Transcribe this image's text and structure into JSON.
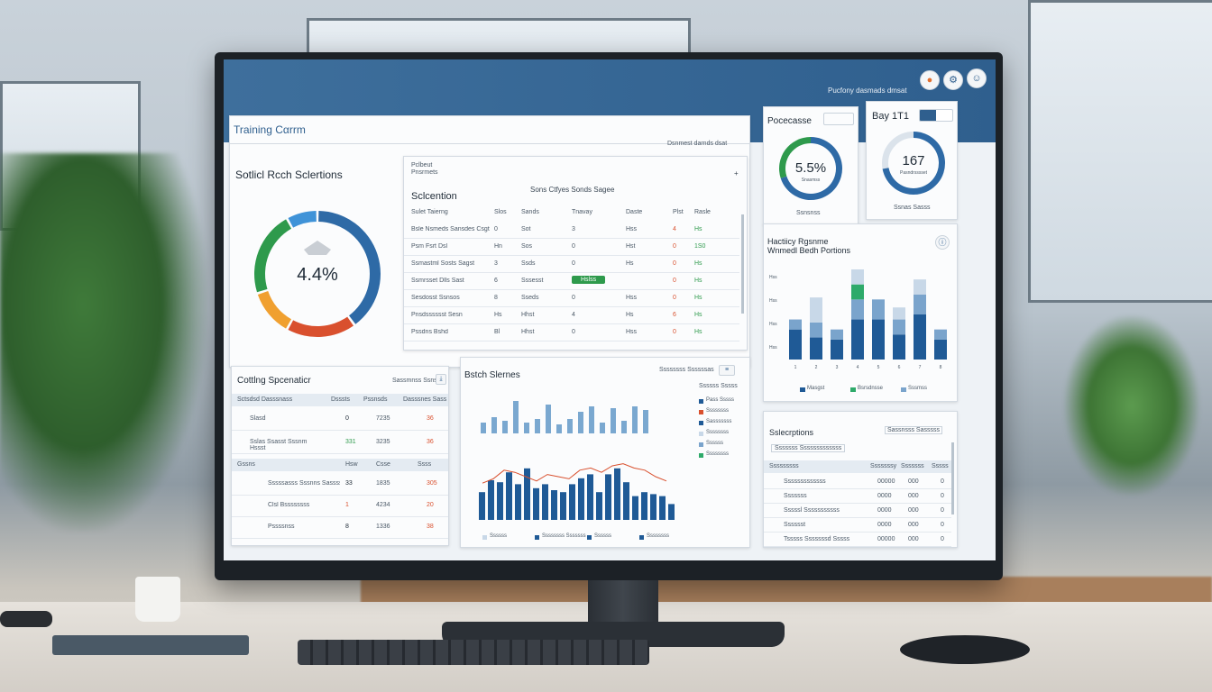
{
  "app": {
    "title": "Training Cαrrm",
    "header_right_text": "Pucfony dasmads dmsat"
  },
  "donut_main": {
    "title": "Sotlicl Rcch Sclertions",
    "value": "4.4%",
    "segments": [
      {
        "name": "blue",
        "value": 40,
        "color": "#2e6aa6"
      },
      {
        "name": "red",
        "value": 18,
        "color": "#d9502e"
      },
      {
        "name": "orange",
        "value": 12,
        "color": "#f0a030"
      },
      {
        "name": "green",
        "value": 22,
        "color": "#2e9a4c"
      },
      {
        "name": "lightblue",
        "value": 8,
        "color": "#3f93d8"
      }
    ]
  },
  "selection_table": {
    "title": "Sclcention",
    "search_label": "Sons Ctfyes Sonds Sagee",
    "top_left_labels": [
      "Pclbeut",
      "Pnsrmets"
    ],
    "top_right_label": "Dsnmest darnds dsat",
    "headers": [
      "Sulet Taierng",
      "Slos",
      "Sands",
      "Tnavay",
      "Daste",
      "Plst",
      "Rasle"
    ],
    "rows": [
      {
        "name": "Bsle Nsmeds Sansdes Csgt",
        "c1": "0",
        "c2": "Sot",
        "c3": "3",
        "c4": "Hss",
        "c5": "4",
        "c6": "Hs"
      },
      {
        "name": "Psm Fsrt Dsl",
        "c1": "Hn",
        "c2": "Sos",
        "c3": "0",
        "c4": "Hst",
        "c5": "0",
        "c6": "1S0"
      },
      {
        "name": "Ssmastml Sosts Sagst",
        "c1": "3",
        "c2": "Ssds",
        "c3": "0",
        "c4": "Hs",
        "c5": "0",
        "c6": "Hs"
      },
      {
        "name": "Ssmrsset Dlls Sast",
        "c1": "6",
        "c2": "Sssesst",
        "c3": "Hslss",
        "c4": "",
        "c5": "0",
        "c6": "Hs"
      },
      {
        "name": "Sesdosst Ssnsos",
        "c1": "8",
        "c2": "Sseds",
        "c3": "0",
        "c4": "Hss",
        "c5": "0",
        "c6": "Hs"
      },
      {
        "name": "Pnsdsssssst Sesn",
        "c1": "Hs",
        "c2": "Hhst",
        "c3": "4",
        "c4": "Hs",
        "c5": "6",
        "c6": "Hs"
      },
      {
        "name": "Pssdns Bshd",
        "c1": "Bl",
        "c2": "Hhst",
        "c3": "0",
        "c4": "Hss",
        "c5": "0",
        "c6": "Hs"
      }
    ]
  },
  "progress_card": {
    "title": "Pocecasse",
    "value": "5.5%",
    "sublabel": "Snasmss",
    "footer": "Ssnsnss",
    "ring": [
      {
        "value": 70,
        "color": "#2e6aa6"
      },
      {
        "value": 30,
        "color": "#2e9a4c"
      }
    ]
  },
  "day_card": {
    "title": "Bay 1T1",
    "value": "167",
    "sublabel": "Pasndrsssset",
    "footer": "Ssnas Sasss",
    "ring_fill": 72,
    "ring_color": "#2e6aa6"
  },
  "stacked_chart": {
    "title_line1": "Hactiicy Rgsnme",
    "title_line2": "Wnmedl Bedh Portions",
    "y_labels": [
      "Hss",
      "Hss",
      "Hss",
      "Hss"
    ],
    "legend": [
      "Masgst",
      "Bsrsdnsse",
      "Sssmss"
    ],
    "chart_data": {
      "type": "bar",
      "stacked": true,
      "categories": [
        "1",
        "2",
        "3",
        "4",
        "5",
        "6",
        "7",
        "8"
      ],
      "series": [
        {
          "name": "dark",
          "values": [
            30,
            22,
            20,
            40,
            40,
            25,
            45,
            20
          ],
          "color": "#1f5a96"
        },
        {
          "name": "mid",
          "values": [
            10,
            15,
            10,
            20,
            20,
            15,
            20,
            10
          ],
          "color": "#7aa4cc"
        },
        {
          "name": "green",
          "values": [
            0,
            0,
            0,
            15,
            0,
            0,
            0,
            0
          ],
          "color": "#2eaa6a"
        },
        {
          "name": "light",
          "values": [
            0,
            25,
            0,
            15,
            0,
            12,
            15,
            0
          ],
          "color": "#c8d8e8"
        }
      ]
    }
  },
  "operations_table": {
    "title": "Cottlng Spcenaticr",
    "right_label": "Sassmnss Ssns",
    "headers": [
      "Sctsdsd Dasssnass",
      "Dsssts",
      "Pssnsds",
      "Dasssnes Sass"
    ],
    "rows": [
      {
        "name": "Slasd",
        "a": "0",
        "b": "7235",
        "c": "36"
      },
      {
        "name": "Sslas Ssasst Sssnm Hssst",
        "a": "331",
        "b": "3235",
        "c": "36"
      }
    ],
    "sub_headers": [
      "Gssns",
      "Hsw",
      "Csse",
      "Ssss"
    ],
    "sub_rows": [
      {
        "name": "Sssssasss Sssnns Sasssssst Bsssstsssy",
        "a": "33",
        "b": "1835",
        "c": "305"
      },
      {
        "name": "Clsl Bssssssss",
        "a": "1",
        "b": "4234",
        "c": "20"
      },
      {
        "name": "Pssssnss",
        "a": "8",
        "b": "1336",
        "c": "38"
      }
    ]
  },
  "batch_chart": {
    "title": "Bstch Slernes",
    "right_label": "Ssssssss Ssssssas",
    "top_bars": [
      6,
      9,
      7,
      18,
      6,
      8,
      16,
      5,
      8,
      12,
      15,
      6,
      14,
      7,
      15,
      13
    ],
    "bottom_bars": [
      14,
      20,
      19,
      24,
      18,
      26,
      16,
      18,
      15,
      14,
      18,
      21,
      23,
      14,
      23,
      26,
      19,
      12,
      14,
      13,
      12,
      8
    ],
    "line": [
      17,
      19,
      23,
      22,
      20,
      18,
      21,
      20,
      19,
      23,
      24,
      22,
      25,
      26,
      24,
      23,
      20,
      18
    ],
    "legend_right": [
      "Pass Sssss",
      "Ssssssss",
      "Sasssssss",
      "Ssssssss",
      "Ssssss",
      "Ssssssss"
    ],
    "legend_colors": [
      "#1f5a96",
      "#d9502e",
      "#1f5a96",
      "#c8d8e8",
      "#7aa4cc",
      "#2eaa6a"
    ],
    "legend_bottom": [
      "Ssssss",
      "Ssssssss Sssssss",
      "Ssssss",
      "Ssssssss"
    ],
    "panel_label": "Ssssss Sssss"
  },
  "subscriptions_table": {
    "title": "Sslecrptions",
    "right_label": "Sassnsss Sasssss",
    "filter_label": "Sssssss Sssssssssssss",
    "headers": [
      "Sssssssss",
      "Sssssssy",
      "Sssssss",
      "Sssss"
    ],
    "rows": [
      {
        "name": "Sssssssssssss",
        "a": "00000",
        "b": "000",
        "c": "0"
      },
      {
        "name": "Sssssss",
        "a": "0000",
        "b": "000",
        "c": "0"
      },
      {
        "name": "Sssssl Sssssssssss",
        "a": "0000",
        "b": "000",
        "c": "0"
      },
      {
        "name": "Sssssst",
        "a": "0000",
        "b": "000",
        "c": "0"
      },
      {
        "name": "Tsssss Sssssssd Sssss",
        "a": "00000",
        "b": "000",
        "c": "0"
      }
    ]
  }
}
